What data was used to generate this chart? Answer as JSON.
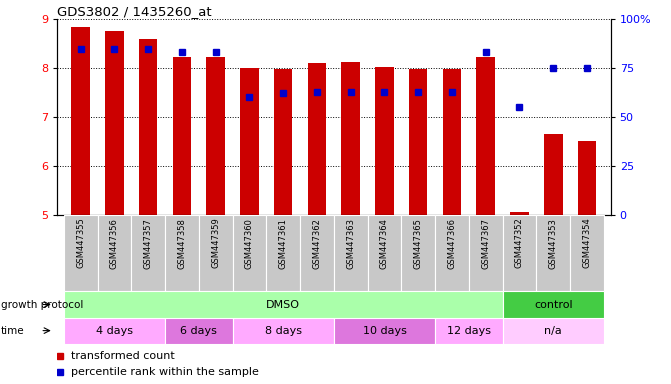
{
  "title": "GDS3802 / 1435260_at",
  "samples": [
    "GSM447355",
    "GSM447356",
    "GSM447357",
    "GSM447358",
    "GSM447359",
    "GSM447360",
    "GSM447361",
    "GSM447362",
    "GSM447363",
    "GSM447364",
    "GSM447365",
    "GSM447366",
    "GSM447367",
    "GSM447352",
    "GSM447353",
    "GSM447354"
  ],
  "transformed_count": [
    8.85,
    8.75,
    8.6,
    8.22,
    8.22,
    8.0,
    7.98,
    8.1,
    8.12,
    8.02,
    7.98,
    7.98,
    8.22,
    5.05,
    6.65,
    6.5
  ],
  "percentile_rank": [
    85,
    85,
    85,
    83,
    83,
    60,
    62,
    63,
    63,
    63,
    63,
    63,
    83,
    55,
    75,
    75
  ],
  "ylim_left": [
    5,
    9
  ],
  "ylim_right": [
    0,
    100
  ],
  "yticks_left": [
    5,
    6,
    7,
    8,
    9
  ],
  "yticks_right": [
    0,
    25,
    50,
    75,
    100
  ],
  "bar_color": "#cc0000",
  "dot_color": "#0000cc",
  "label_bg_color": "#c8c8c8",
  "groups": {
    "growth_protocol": [
      {
        "label": "DMSO",
        "start": 0,
        "end": 13,
        "color": "#aaffaa"
      },
      {
        "label": "control",
        "start": 13,
        "end": 16,
        "color": "#44cc44"
      }
    ],
    "time": [
      {
        "label": "4 days",
        "start": 0,
        "end": 3,
        "color": "#ffaaff"
      },
      {
        "label": "6 days",
        "start": 3,
        "end": 5,
        "color": "#dd77dd"
      },
      {
        "label": "8 days",
        "start": 5,
        "end": 8,
        "color": "#ffaaff"
      },
      {
        "label": "10 days",
        "start": 8,
        "end": 11,
        "color": "#dd77dd"
      },
      {
        "label": "12 days",
        "start": 11,
        "end": 13,
        "color": "#ffaaff"
      },
      {
        "label": "n/a",
        "start": 13,
        "end": 16,
        "color": "#ffccff"
      }
    ]
  },
  "legend": [
    {
      "label": "transformed count",
      "color": "#cc0000"
    },
    {
      "label": "percentile rank within the sample",
      "color": "#0000cc"
    }
  ],
  "fig_width": 6.71,
  "fig_height": 3.84,
  "dpi": 100
}
